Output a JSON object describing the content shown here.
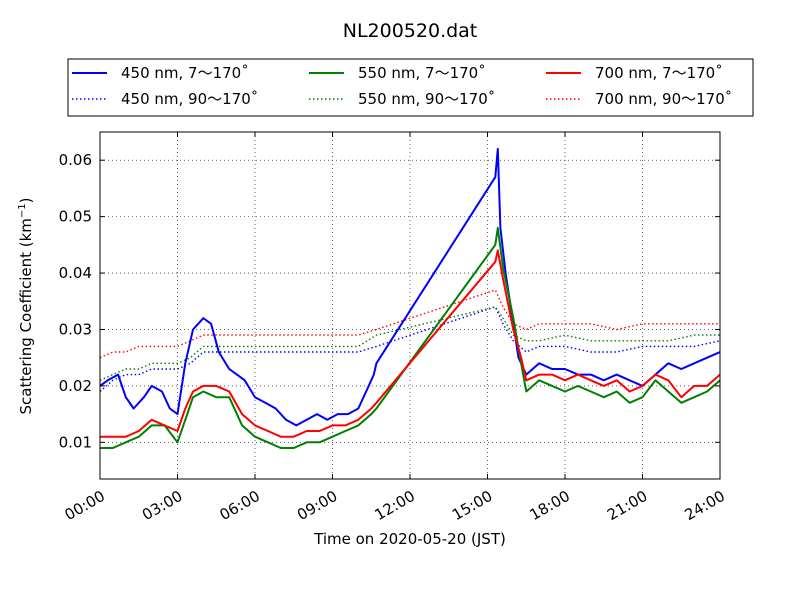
{
  "chart_data": {
    "type": "line",
    "title": "NL200520.dat",
    "xlabel": "Time on 2020-05-20 (JST)",
    "ylabel": "Scattering Coefficient (km",
    "ylabel_sup": "−1",
    "ylabel_close": ")",
    "xlim": [
      0,
      24
    ],
    "ylim": [
      0.0035,
      0.065
    ],
    "grid": true,
    "legend_position": "top",
    "x_ticks": [
      0,
      3,
      6,
      9,
      12,
      15,
      18,
      21,
      24
    ],
    "x_tick_labels": [
      "00:00",
      "03:00",
      "06:00",
      "09:00",
      "12:00",
      "15:00",
      "18:00",
      "21:00",
      "24:00"
    ],
    "y_ticks": [
      0.01,
      0.02,
      0.03,
      0.04,
      0.05,
      0.06
    ],
    "y_tick_labels": [
      "0.01",
      "0.02",
      "0.03",
      "0.04",
      "0.05",
      "0.06"
    ],
    "series": [
      {
        "name": "450 nm, 7～170˚",
        "color": "#0000ff",
        "style": "solid",
        "x": [
          0,
          0.3,
          0.7,
          1.0,
          1.3,
          1.7,
          2.0,
          2.4,
          2.7,
          3.0,
          3.3,
          3.6,
          4.0,
          4.3,
          4.6,
          5.0,
          5.3,
          5.6,
          6.0,
          6.4,
          6.8,
          7.2,
          7.6,
          8.0,
          8.4,
          8.8,
          9.2,
          9.6,
          10.0,
          10.4,
          10.6,
          10.7,
          15.3,
          15.4,
          15.5,
          15.7,
          16.0,
          16.2,
          16.5,
          17.0,
          17.5,
          18.0,
          18.5,
          19.0,
          19.5,
          20.0,
          20.5,
          21.0,
          21.5,
          22.0,
          22.5,
          23.0,
          23.5,
          24.0
        ],
        "y": [
          0.02,
          0.021,
          0.022,
          0.018,
          0.016,
          0.018,
          0.02,
          0.019,
          0.016,
          0.015,
          0.024,
          0.03,
          0.032,
          0.031,
          0.026,
          0.023,
          0.022,
          0.021,
          0.018,
          0.017,
          0.016,
          0.014,
          0.013,
          0.014,
          0.015,
          0.014,
          0.015,
          0.015,
          0.016,
          0.02,
          0.022,
          0.024,
          0.057,
          0.062,
          0.048,
          0.04,
          0.031,
          0.025,
          0.022,
          0.024,
          0.023,
          0.023,
          0.022,
          0.022,
          0.021,
          0.022,
          0.021,
          0.02,
          0.022,
          0.024,
          0.023,
          0.024,
          0.025,
          0.026
        ]
      },
      {
        "name": "450 nm, 90～170˚",
        "color": "#0000ff",
        "style": "dotted",
        "x": [
          0,
          0.5,
          1.0,
          1.5,
          2.0,
          2.5,
          3.0,
          3.5,
          4.0,
          4.5,
          5.0,
          6.0,
          7.0,
          8.0,
          9.0,
          10.0,
          10.7,
          15.3,
          15.6,
          16.0,
          16.5,
          17.0,
          18.0,
          19.0,
          20.0,
          21.0,
          22.0,
          23.0,
          24.0
        ],
        "y": [
          0.019,
          0.021,
          0.022,
          0.022,
          0.023,
          0.023,
          0.023,
          0.024,
          0.026,
          0.026,
          0.026,
          0.026,
          0.026,
          0.026,
          0.026,
          0.026,
          0.027,
          0.034,
          0.031,
          0.028,
          0.026,
          0.027,
          0.027,
          0.026,
          0.026,
          0.027,
          0.027,
          0.027,
          0.028
        ]
      },
      {
        "name": "550 nm, 7～170˚",
        "color": "#008000",
        "style": "solid",
        "x": [
          0,
          0.5,
          1.0,
          1.5,
          2.0,
          2.5,
          3.0,
          3.3,
          3.6,
          4.0,
          4.5,
          5.0,
          5.5,
          6.0,
          6.5,
          7.0,
          7.5,
          8.0,
          8.5,
          9.0,
          9.5,
          10.0,
          10.5,
          10.7,
          15.3,
          15.4,
          15.6,
          16.0,
          16.3,
          16.5,
          17.0,
          17.5,
          18.0,
          18.5,
          19.0,
          19.5,
          20.0,
          20.5,
          21.0,
          21.5,
          22.0,
          22.5,
          23.0,
          23.5,
          24.0
        ],
        "y": [
          0.009,
          0.009,
          0.01,
          0.011,
          0.013,
          0.013,
          0.01,
          0.014,
          0.018,
          0.019,
          0.018,
          0.018,
          0.013,
          0.011,
          0.01,
          0.009,
          0.009,
          0.01,
          0.01,
          0.011,
          0.012,
          0.013,
          0.015,
          0.016,
          0.045,
          0.048,
          0.041,
          0.032,
          0.024,
          0.019,
          0.021,
          0.02,
          0.019,
          0.02,
          0.019,
          0.018,
          0.019,
          0.017,
          0.018,
          0.021,
          0.019,
          0.017,
          0.018,
          0.019,
          0.021
        ]
      },
      {
        "name": "550 nm, 90～170˚",
        "color": "#008000",
        "style": "dotted",
        "x": [
          0,
          0.5,
          1.0,
          1.5,
          2.0,
          2.5,
          3.0,
          3.5,
          4.0,
          4.5,
          5.0,
          6.0,
          7.0,
          8.0,
          9.0,
          10.0,
          10.7,
          15.3,
          15.6,
          16.0,
          16.5,
          17.0,
          18.0,
          19.0,
          20.0,
          21.0,
          22.0,
          23.0,
          24.0
        ],
        "y": [
          0.021,
          0.022,
          0.023,
          0.023,
          0.024,
          0.024,
          0.024,
          0.025,
          0.027,
          0.027,
          0.027,
          0.027,
          0.027,
          0.027,
          0.027,
          0.027,
          0.029,
          0.034,
          0.032,
          0.029,
          0.028,
          0.028,
          0.029,
          0.028,
          0.028,
          0.028,
          0.028,
          0.029,
          0.029
        ]
      },
      {
        "name": "700 nm, 7～170˚",
        "color": "#ff0000",
        "style": "solid",
        "x": [
          0,
          0.5,
          1.0,
          1.5,
          2.0,
          2.5,
          3.0,
          3.3,
          3.6,
          4.0,
          4.5,
          5.0,
          5.5,
          6.0,
          6.5,
          7.0,
          7.5,
          8.0,
          8.5,
          9.0,
          9.5,
          10.0,
          10.5,
          10.7,
          15.3,
          15.4,
          15.6,
          16.0,
          16.3,
          16.5,
          17.0,
          17.5,
          18.0,
          18.5,
          19.0,
          19.5,
          20.0,
          20.5,
          21.0,
          21.5,
          22.0,
          22.5,
          23.0,
          23.5,
          24.0
        ],
        "y": [
          0.011,
          0.011,
          0.011,
          0.012,
          0.014,
          0.013,
          0.012,
          0.016,
          0.019,
          0.02,
          0.02,
          0.019,
          0.015,
          0.013,
          0.012,
          0.011,
          0.011,
          0.012,
          0.012,
          0.013,
          0.013,
          0.014,
          0.016,
          0.017,
          0.042,
          0.044,
          0.039,
          0.03,
          0.025,
          0.021,
          0.022,
          0.022,
          0.021,
          0.022,
          0.021,
          0.02,
          0.021,
          0.019,
          0.02,
          0.022,
          0.021,
          0.018,
          0.02,
          0.02,
          0.022
        ]
      },
      {
        "name": "700 nm, 90～170˚",
        "color": "#ff0000",
        "style": "dotted",
        "x": [
          0,
          0.5,
          1.0,
          1.5,
          2.0,
          2.5,
          3.0,
          3.5,
          4.0,
          4.5,
          5.0,
          6.0,
          7.0,
          8.0,
          9.0,
          10.0,
          10.7,
          15.3,
          15.6,
          16.0,
          16.5,
          17.0,
          18.0,
          19.0,
          20.0,
          21.0,
          22.0,
          23.0,
          24.0
        ],
        "y": [
          0.025,
          0.026,
          0.026,
          0.027,
          0.027,
          0.027,
          0.027,
          0.028,
          0.029,
          0.029,
          0.029,
          0.029,
          0.029,
          0.029,
          0.029,
          0.029,
          0.03,
          0.037,
          0.034,
          0.031,
          0.03,
          0.031,
          0.031,
          0.031,
          0.03,
          0.031,
          0.031,
          0.031,
          0.031
        ]
      }
    ]
  }
}
